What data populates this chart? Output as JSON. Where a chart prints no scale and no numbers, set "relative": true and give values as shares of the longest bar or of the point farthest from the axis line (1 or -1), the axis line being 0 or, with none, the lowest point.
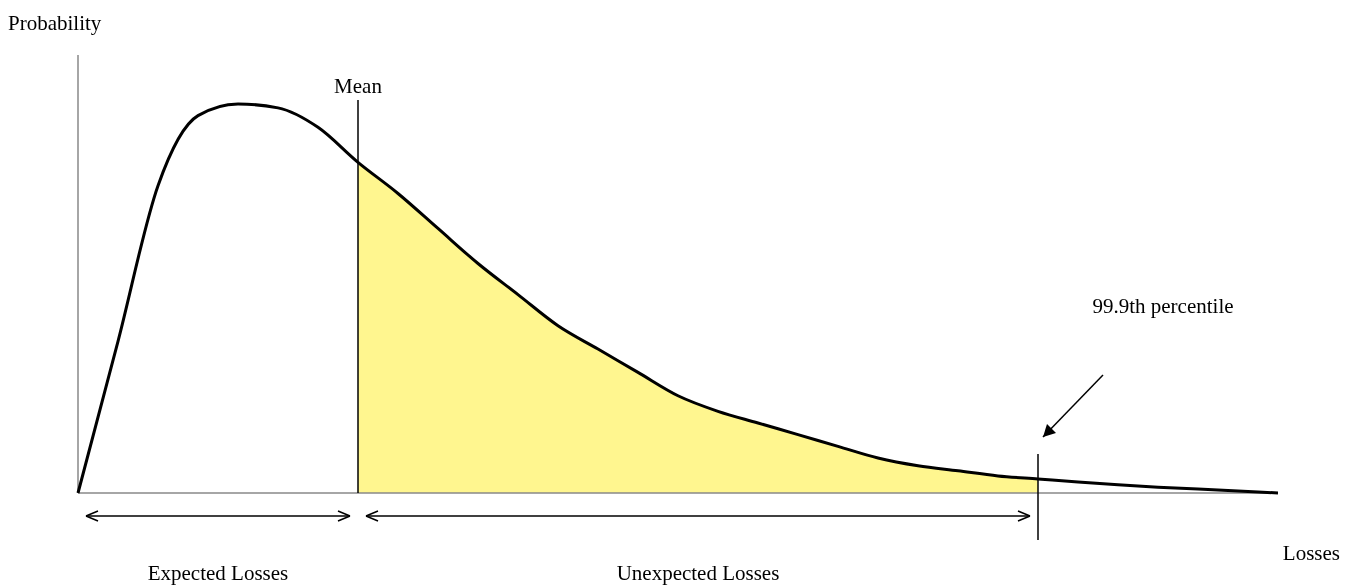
{
  "chart_data": {
    "type": "line",
    "relative": true,
    "ylabel": "Probability",
    "xlabel": "Losses",
    "categories": [
      null,
      null,
      null,
      null,
      null,
      null,
      null,
      null,
      null,
      null,
      null,
      null,
      null,
      null,
      null,
      null,
      null,
      null,
      null,
      null,
      null,
      null,
      null,
      null,
      null,
      null,
      null,
      null,
      null,
      null,
      null
    ],
    "series": [
      {
        "type": "area",
        "color": "#fff68f",
        "values": [
          null,
          null,
          null,
          null,
          null,
          null,
          null,
          0.85,
          0.77,
          0.68,
          0.59,
          0.51,
          0.43,
          0.37,
          0.31,
          0.25,
          0.21,
          0.18,
          0.15,
          0.12,
          0.09,
          0.07,
          0.057,
          0.044,
          0.036,
          null,
          null,
          null,
          null,
          null,
          null
        ]
      },
      {
        "color": "#000000",
        "values": [
          0,
          0.39,
          0.79,
          0.97,
          1.0,
          0.99,
          0.94,
          0.85,
          0.77,
          0.68,
          0.59,
          0.51,
          0.43,
          0.37,
          0.31,
          0.25,
          0.21,
          0.18,
          0.15,
          0.12,
          0.09,
          0.07,
          0.057,
          0.044,
          0.036,
          0.028,
          0.021,
          0.015,
          0.01,
          0.005,
          0
        ]
      }
    ],
    "annotations": [
      "Mean",
      "99.9th percentile",
      "Expected Losses",
      "Unexpected Losses"
    ],
    "line_style": "solid"
  }
}
